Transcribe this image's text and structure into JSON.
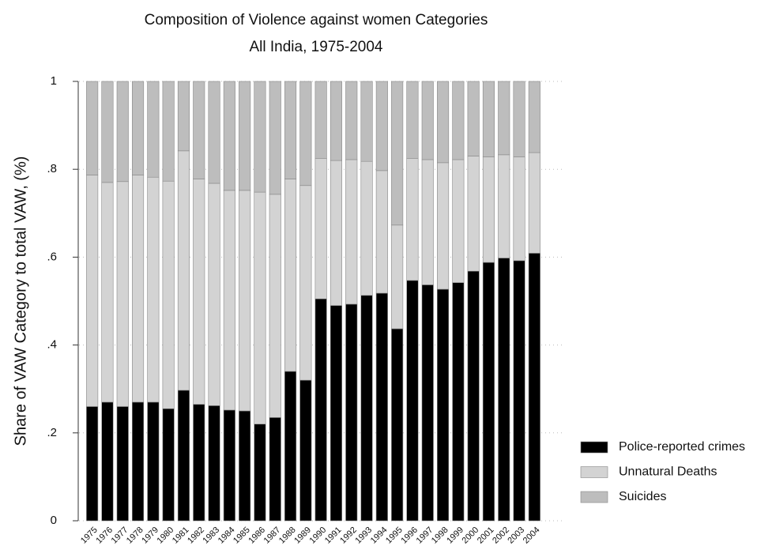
{
  "chart_data": {
    "type": "stacked-bar",
    "title": "Composition of Violence against women Categories",
    "subtitle": "All India, 1975-2004",
    "y_label": "Share of VAW Category to total VAW, (%)",
    "categories": [
      "1975",
      "1976",
      "1977",
      "1978",
      "1979",
      "1980",
      "1981",
      "1982",
      "1983",
      "1984",
      "1985",
      "1986",
      "1987",
      "1988",
      "1989",
      "1990",
      "1991",
      "1992",
      "1993",
      "1994",
      "1995",
      "1996",
      "1997",
      "1998",
      "1999",
      "2000",
      "2001",
      "2002",
      "2003",
      "2004"
    ],
    "series": [
      {
        "name": "Police-reported crimes",
        "color": "#000000",
        "values": [
          0.26,
          0.27,
          0.26,
          0.27,
          0.27,
          0.255,
          0.297,
          0.265,
          0.262,
          0.252,
          0.25,
          0.22,
          0.235,
          0.34,
          0.32,
          0.505,
          0.49,
          0.493,
          0.513,
          0.518,
          0.437,
          0.547,
          0.537,
          0.527,
          0.542,
          0.568,
          0.588,
          0.598,
          0.592,
          0.609
        ]
      },
      {
        "name": "Unnatural Deaths",
        "color": "#d3d3d3",
        "values": [
          0.527,
          0.5,
          0.512,
          0.517,
          0.512,
          0.518,
          0.545,
          0.513,
          0.506,
          0.5,
          0.502,
          0.528,
          0.508,
          0.438,
          0.443,
          0.32,
          0.33,
          0.329,
          0.305,
          0.279,
          0.236,
          0.278,
          0.285,
          0.288,
          0.28,
          0.262,
          0.24,
          0.235,
          0.236,
          0.229
        ]
      },
      {
        "name": "Suicides",
        "color": "#bdbdbd",
        "values": [
          0.213,
          0.23,
          0.228,
          0.213,
          0.218,
          0.227,
          0.158,
          0.222,
          0.232,
          0.248,
          0.248,
          0.252,
          0.257,
          0.222,
          0.237,
          0.175,
          0.18,
          0.178,
          0.182,
          0.203,
          0.327,
          0.175,
          0.178,
          0.185,
          0.178,
          0.17,
          0.172,
          0.167,
          0.172,
          0.162
        ]
      }
    ],
    "ylim": [
      0,
      1
    ],
    "yticks": [
      0,
      {
        "value": 0.2,
        "label": ".2"
      },
      {
        "value": 0.4,
        "label": ".4"
      },
      {
        "value": 0.6,
        "label": ".6"
      },
      {
        "value": 0.8,
        "label": ".8"
      },
      1
    ],
    "grid": true,
    "legend": "right"
  }
}
